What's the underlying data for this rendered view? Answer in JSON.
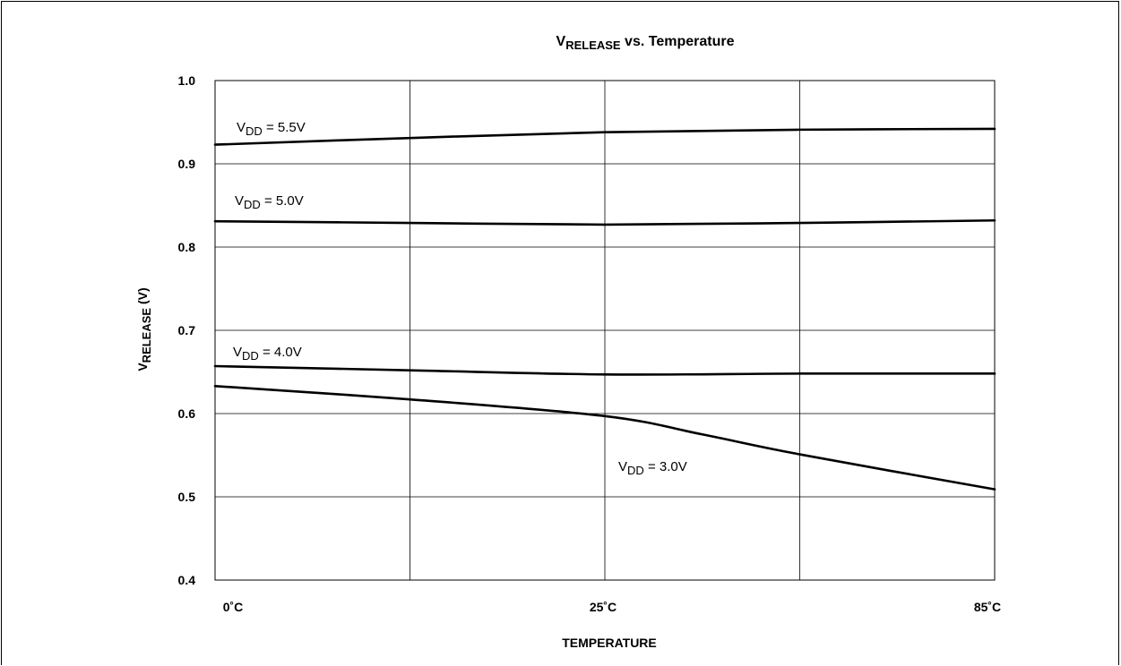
{
  "chart_data": {
    "type": "line",
    "title": {
      "main": "V",
      "sub": "RELEASE",
      "rest": " vs. Temperature"
    },
    "xlabel": "TEMPERATURE",
    "ylabel": {
      "main": "V",
      "sub": "RELEASE",
      "rest": " (V)"
    },
    "ylim": [
      0.4,
      1.0
    ],
    "yticks": [
      1.0,
      0.9,
      0.8,
      0.7,
      0.6,
      0.5,
      0.4
    ],
    "ytick_labels": [
      "1.0",
      "0.9",
      "0.8",
      "0.7",
      "0.6",
      "0.5",
      "0.4"
    ],
    "xlim": [
      0,
      4
    ],
    "xticks": [
      0,
      2,
      4
    ],
    "xtick_labels": [
      "0˚C",
      "25˚C",
      "85˚C"
    ],
    "grid": true,
    "x_gridlines": [
      1,
      2,
      3
    ],
    "series": [
      {
        "name": {
          "main": "V",
          "sub": "DD",
          "rest": " = 5.5V"
        },
        "x": [
          0,
          1,
          2,
          3,
          4
        ],
        "y": [
          0.923,
          0.931,
          0.938,
          0.941,
          0.942
        ]
      },
      {
        "name": {
          "main": "V",
          "sub": "DD",
          "rest": " = 5.0V"
        },
        "x": [
          0,
          1,
          2,
          3,
          4
        ],
        "y": [
          0.831,
          0.829,
          0.827,
          0.829,
          0.832
        ]
      },
      {
        "name": {
          "main": "V",
          "sub": "DD",
          "rest": " = 4.0V"
        },
        "x": [
          0,
          1,
          2,
          3,
          4
        ],
        "y": [
          0.657,
          0.652,
          0.647,
          0.648,
          0.648
        ]
      },
      {
        "name": {
          "main": "V",
          "sub": "DD",
          "rest": " = 3.0V"
        },
        "x": [
          0,
          1,
          2,
          2.5,
          3,
          4
        ],
        "y": [
          0.633,
          0.617,
          0.597,
          0.575,
          0.551,
          0.509
        ]
      }
    ]
  }
}
